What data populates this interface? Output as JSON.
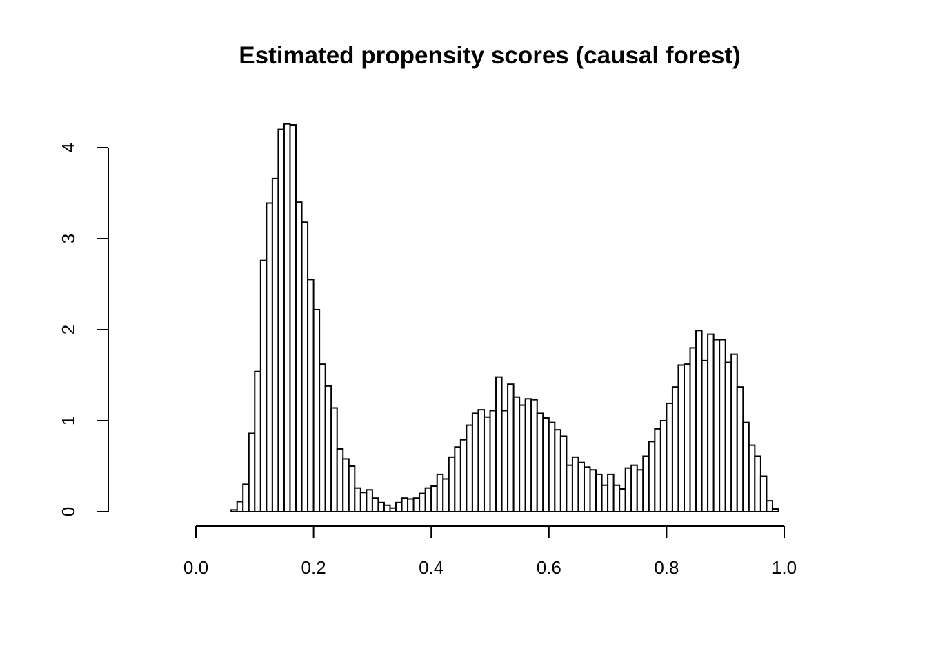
{
  "chart_data": {
    "type": "bar",
    "subtype": "histogram",
    "title": "Estimated propensity scores (causal forest)",
    "xlabel": "",
    "ylabel": "",
    "xlim": [
      0,
      1
    ],
    "ylim": [
      0,
      4.26
    ],
    "grid": false,
    "bin_width": 0.01,
    "bin_start": 0.06,
    "bar_fill": "#ffffff",
    "bar_stroke": "#000000",
    "x_ticks": [
      {
        "value": 0.0,
        "label": "0.0"
      },
      {
        "value": 0.2,
        "label": "0.2"
      },
      {
        "value": 0.4,
        "label": "0.4"
      },
      {
        "value": 0.6,
        "label": "0.6"
      },
      {
        "value": 0.8,
        "label": "0.8"
      },
      {
        "value": 1.0,
        "label": "1.0"
      }
    ],
    "y_ticks": [
      {
        "value": 0,
        "label": "0"
      },
      {
        "value": 1,
        "label": "1"
      },
      {
        "value": 2,
        "label": "2"
      },
      {
        "value": 3,
        "label": "3"
      },
      {
        "value": 4,
        "label": "4"
      }
    ],
    "densities": [
      0.02,
      0.11,
      0.3,
      0.86,
      1.54,
      2.76,
      3.39,
      3.66,
      4.2,
      4.26,
      4.25,
      3.4,
      3.18,
      2.55,
      2.22,
      1.62,
      1.38,
      1.14,
      0.69,
      0.58,
      0.5,
      0.26,
      0.21,
      0.24,
      0.15,
      0.1,
      0.07,
      0.04,
      0.1,
      0.15,
      0.14,
      0.15,
      0.2,
      0.26,
      0.28,
      0.41,
      0.36,
      0.6,
      0.71,
      0.79,
      0.95,
      1.08,
      1.12,
      1.04,
      1.11,
      1.48,
      1.11,
      1.4,
      1.26,
      1.17,
      1.24,
      1.23,
      1.08,
      1.03,
      0.98,
      0.9,
      0.83,
      0.51,
      0.6,
      0.54,
      0.49,
      0.46,
      0.41,
      0.29,
      0.41,
      0.29,
      0.25,
      0.48,
      0.51,
      0.46,
      0.61,
      0.77,
      0.91,
      1.0,
      1.19,
      1.37,
      1.61,
      1.62,
      1.8,
      1.99,
      1.66,
      1.95,
      1.89,
      1.89,
      1.64,
      1.73,
      1.37,
      0.98,
      0.73,
      0.61,
      0.39,
      0.12,
      0.03
    ]
  }
}
